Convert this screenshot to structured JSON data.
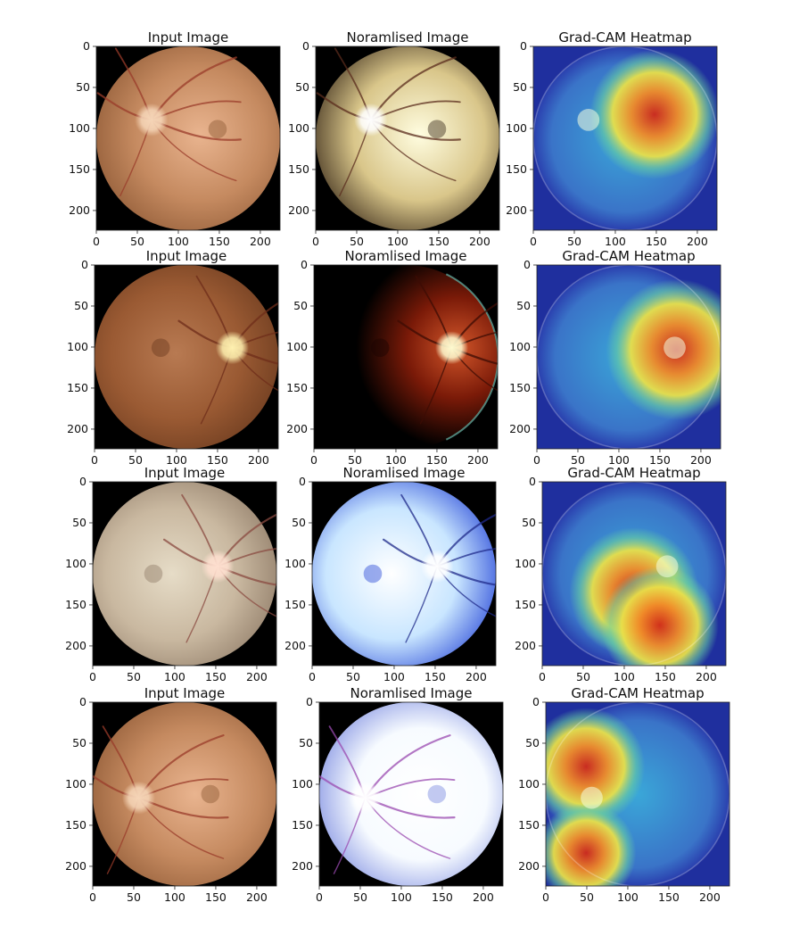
{
  "figure": {
    "rows": [
      {
        "panels": [
          {
            "title": "Input Image",
            "kind": "input",
            "theme": "orange",
            "disc": [
              0.3,
              0.4
            ],
            "fovea": [
              0.66,
              0.45
            ]
          },
          {
            "title": "Noramlised Image",
            "kind": "normalised",
            "theme": "yellow",
            "disc": [
              0.3,
              0.4
            ],
            "fovea": [
              0.66,
              0.45
            ]
          },
          {
            "title": "Grad-CAM Heatmap",
            "kind": "heatmap",
            "disc": [
              0.3,
              0.4
            ],
            "hot": [
              [
                0.66,
                0.37,
                0.22
              ]
            ]
          }
        ]
      },
      {
        "panels": [
          {
            "title": "Input Image",
            "kind": "input",
            "theme": "brown",
            "disc": [
              0.75,
              0.45
            ],
            "fovea": [
              0.36,
              0.45
            ]
          },
          {
            "title": "Noramlised Image",
            "kind": "normalised",
            "theme": "red",
            "disc": [
              0.75,
              0.45
            ],
            "fovea": [
              0.36,
              0.45
            ]
          },
          {
            "title": "Grad-CAM Heatmap",
            "kind": "heatmap",
            "disc": [
              0.75,
              0.45
            ],
            "hot": [
              [
                0.76,
                0.46,
                0.24
              ]
            ]
          }
        ]
      },
      {
        "panels": [
          {
            "title": "Input Image",
            "kind": "input",
            "theme": "pale",
            "disc": [
              0.68,
              0.46
            ],
            "fovea": [
              0.33,
              0.5
            ]
          },
          {
            "title": "Noramlised Image",
            "kind": "normalised",
            "theme": "blue",
            "disc": [
              0.68,
              0.46
            ],
            "fovea": [
              0.33,
              0.5
            ]
          },
          {
            "title": "Grad-CAM Heatmap",
            "kind": "heatmap",
            "disc": [
              0.68,
              0.46
            ],
            "hot": [
              [
                0.5,
                0.6,
                0.22
              ],
              [
                0.64,
                0.78,
                0.2
              ]
            ]
          }
        ]
      },
      {
        "panels": [
          {
            "title": "Input Image",
            "kind": "input",
            "theme": "orange",
            "disc": [
              0.25,
              0.52
            ],
            "fovea": [
              0.64,
              0.5
            ]
          },
          {
            "title": "Noramlised Image",
            "kind": "normalised",
            "theme": "white",
            "disc": [
              0.25,
              0.52
            ],
            "fovea": [
              0.64,
              0.5
            ]
          },
          {
            "title": "Grad-CAM Heatmap",
            "kind": "heatmap",
            "disc": [
              0.25,
              0.52
            ],
            "hot": [
              [
                0.22,
                0.35,
                0.2
              ],
              [
                0.22,
                0.82,
                0.17
              ]
            ]
          }
        ]
      }
    ],
    "x_ticks": [
      "0",
      "50",
      "100",
      "150",
      "200"
    ],
    "y_ticks": [
      "0",
      "50",
      "100",
      "150",
      "200"
    ],
    "image_extent": 224
  }
}
